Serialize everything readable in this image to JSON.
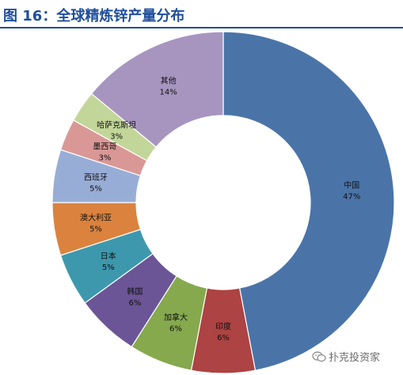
{
  "title": "图 16：全球精炼锌产量分布",
  "watermark": {
    "text": "扑克投资家",
    "icon": "wechat-icon"
  },
  "chart_data": {
    "type": "pie",
    "variant": "donut",
    "title": "图 16：全球精炼锌产量分布",
    "slices": [
      {
        "label": "中国",
        "value": 47,
        "value_label": "47%",
        "color": "#4a74a8"
      },
      {
        "label": "印度",
        "value": 6,
        "value_label": "6%",
        "color": "#ad4342"
      },
      {
        "label": "加拿大",
        "value": 6,
        "value_label": "6%",
        "color": "#86a94e"
      },
      {
        "label": "韩国",
        "value": 6,
        "value_label": "6%",
        "color": "#6b5596"
      },
      {
        "label": "日本",
        "value": 5,
        "value_label": "5%",
        "color": "#3e98ad"
      },
      {
        "label": "澳大利亚",
        "value": 5,
        "value_label": "5%",
        "color": "#db833e"
      },
      {
        "label": "西班牙",
        "value": 5,
        "value_label": "5%",
        "color": "#98add6"
      },
      {
        "label": "墨西哥",
        "value": 3,
        "value_label": "3%",
        "color": "#d99896"
      },
      {
        "label": "哈萨克斯坦",
        "value": 3,
        "value_label": "3%",
        "color": "#c3d69a"
      },
      {
        "label": "其他",
        "value": 14,
        "value_label": "14%",
        "color": "#a795c0"
      }
    ],
    "start": "12 o'clock",
    "direction": "clockwise",
    "legend": "none"
  }
}
